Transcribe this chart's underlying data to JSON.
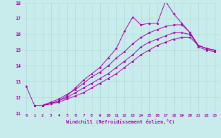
{
  "background_color": "#c8ecec",
  "grid_color": "#b0d8d8",
  "line_color": "#aa00aa",
  "marker": "*",
  "xlabel": "Windchill (Refroidissement éolien,°C)",
  "xlim": [
    -0.5,
    23.5
  ],
  "ylim": [
    11,
    18
  ],
  "yticks": [
    11,
    12,
    13,
    14,
    15,
    16,
    17,
    18
  ],
  "xticks": [
    0,
    1,
    2,
    3,
    4,
    5,
    6,
    7,
    8,
    9,
    10,
    11,
    12,
    13,
    14,
    15,
    16,
    17,
    18,
    19,
    20,
    21,
    22,
    23
  ],
  "lines": [
    {
      "x": [
        0,
        1,
        2,
        3,
        4,
        5,
        6,
        7,
        8,
        9,
        10,
        11,
        12,
        13,
        14,
        15,
        16,
        17,
        18,
        19,
        20,
        21,
        22,
        23
      ],
      "y": [
        12.7,
        11.5,
        11.5,
        11.6,
        11.8,
        12.1,
        12.6,
        13.1,
        13.5,
        13.9,
        14.5,
        15.1,
        16.2,
        17.1,
        16.6,
        16.7,
        16.7,
        18.1,
        17.3,
        16.7,
        16.1,
        15.2,
        15.0,
        14.9
      ]
    },
    {
      "x": [
        1,
        2,
        3,
        4,
        5,
        6,
        7,
        8,
        9,
        10,
        11,
        12,
        13,
        14,
        15,
        16,
        17,
        18,
        19,
        20,
        21,
        22,
        23
      ],
      "y": [
        11.5,
        11.5,
        11.6,
        11.7,
        11.9,
        12.1,
        12.3,
        12.6,
        12.9,
        13.2,
        13.5,
        13.9,
        14.3,
        14.7,
        15.0,
        15.3,
        15.5,
        15.7,
        15.8,
        15.8,
        15.3,
        15.1,
        15.0
      ]
    },
    {
      "x": [
        1,
        2,
        3,
        4,
        5,
        6,
        7,
        8,
        9,
        10,
        11,
        12,
        13,
        14,
        15,
        16,
        17,
        18,
        19,
        20,
        21,
        22,
        23
      ],
      "y": [
        11.5,
        11.5,
        11.6,
        11.8,
        12.0,
        12.3,
        12.6,
        12.9,
        13.2,
        13.5,
        13.9,
        14.3,
        14.7,
        15.2,
        15.5,
        15.7,
        15.9,
        16.1,
        16.1,
        16.0,
        15.3,
        15.1,
        15.0
      ]
    },
    {
      "x": [
        1,
        2,
        3,
        4,
        5,
        6,
        7,
        8,
        9,
        10,
        11,
        12,
        13,
        14,
        15,
        16,
        17,
        18,
        19,
        20,
        21,
        22,
        23
      ],
      "y": [
        11.5,
        11.5,
        11.7,
        11.9,
        12.2,
        12.5,
        12.9,
        13.3,
        13.6,
        14.0,
        14.5,
        14.9,
        15.4,
        15.8,
        16.1,
        16.3,
        16.5,
        16.6,
        16.6,
        16.1,
        15.3,
        15.1,
        15.0
      ]
    }
  ]
}
